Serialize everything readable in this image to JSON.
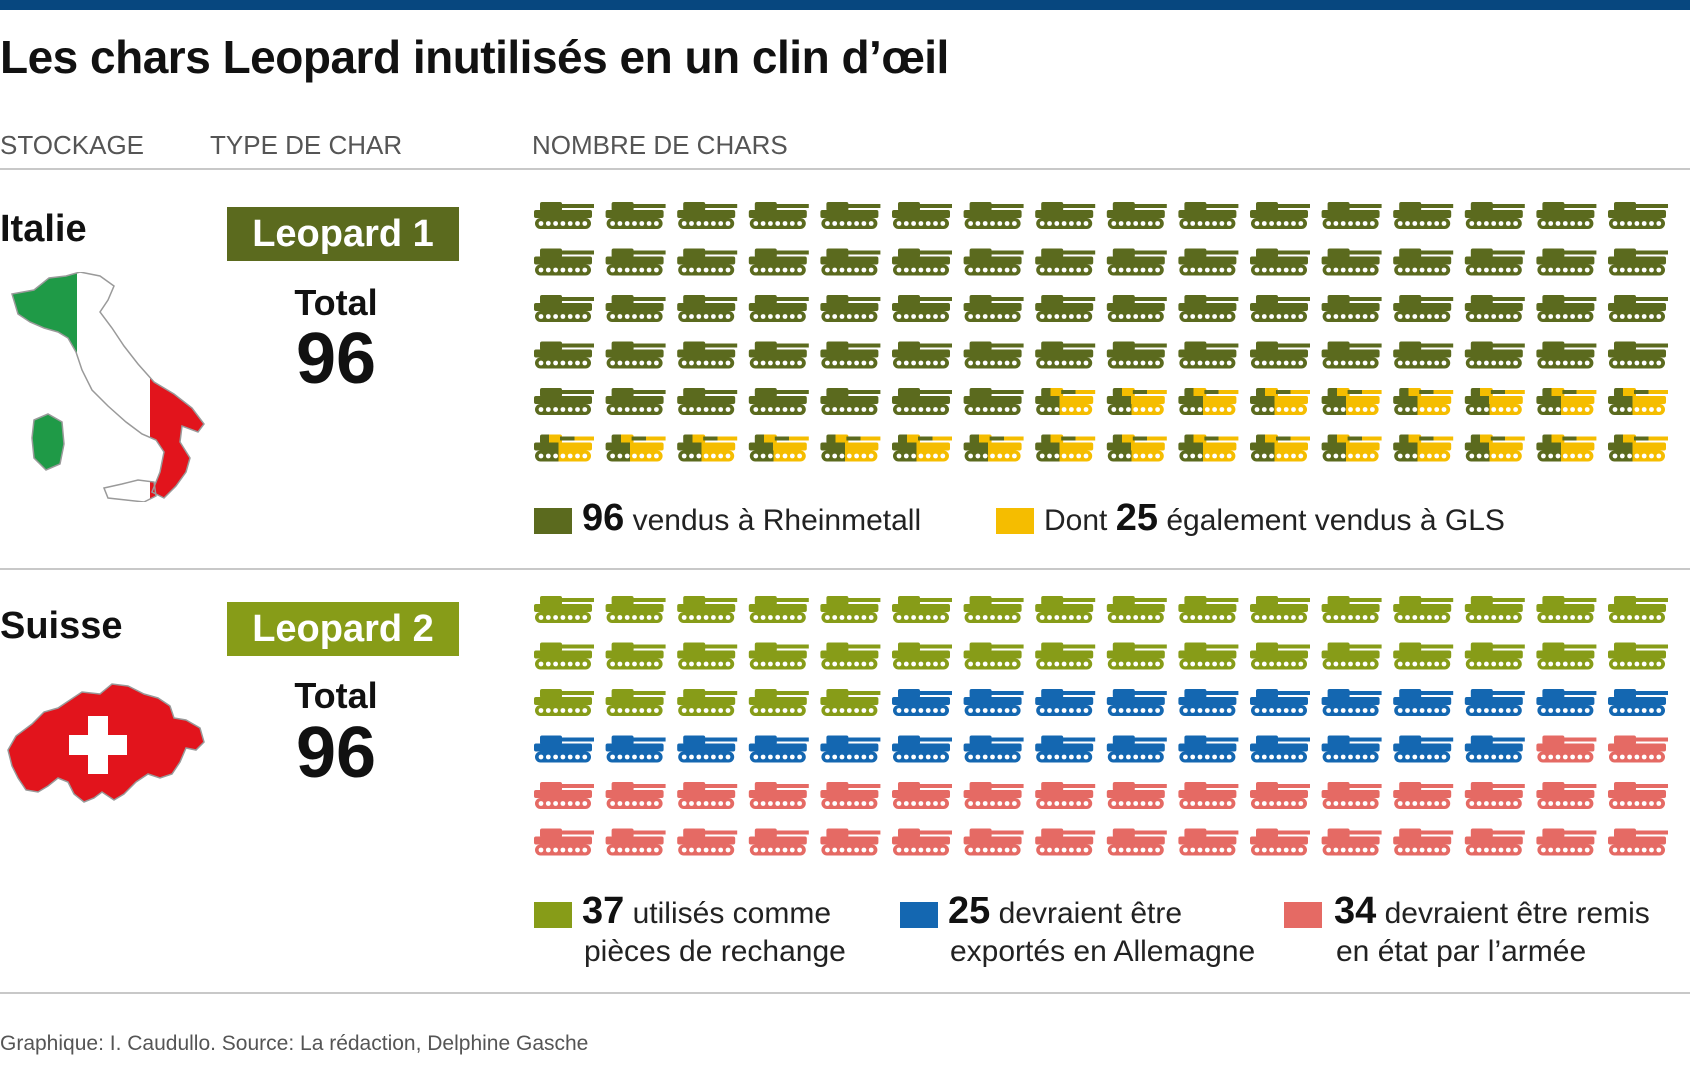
{
  "title": "Les chars Leopard inutilisés en un clin d’œil",
  "columns": {
    "storage": "STOCKAGE",
    "type": "TYPE DE CHAR",
    "count": "NOMBRE DE CHARS"
  },
  "colors": {
    "topbar": "#07477f",
    "leopard1": "#5b6a1e",
    "gls": "#f5bd00",
    "leopard2": "#879c18",
    "export": "#1467b1",
    "repair": "#e56a64"
  },
  "italy": {
    "country": "Italie",
    "tank_type": "Leopard 1",
    "total_label": "Total",
    "total_value": "96",
    "map_icon": "italy-map-icon",
    "legend": [
      {
        "value": "96",
        "label": "vendus à Rheinmetall",
        "color": "#5b6a1e"
      },
      {
        "prefix": "Dont",
        "value": "25",
        "label": "également vendus à GLS",
        "color": "#f5bd00"
      }
    ]
  },
  "switzerland": {
    "country": "Suisse",
    "tank_type": "Leopard 2",
    "total_label": "Total",
    "total_value": "96",
    "map_icon": "switzerland-map-icon",
    "legend": [
      {
        "value": "37",
        "line1": "utilisés comme",
        "line2": "pièces de rechange",
        "color": "#879c18"
      },
      {
        "value": "25",
        "line1": "devraient être",
        "line2": "exportés en Allemagne",
        "color": "#1467b1"
      },
      {
        "value": "34",
        "line1": "devraient être remis",
        "line2": "en état par l’armée",
        "color": "#e56a64"
      }
    ]
  },
  "chart_data": [
    {
      "type": "pictogram",
      "title": "Italie — Leopard 1",
      "total": 96,
      "grid": {
        "rows": 6,
        "cols": 16
      },
      "series": [
        {
          "name": "vendus à Rheinmetall",
          "value": 96
        },
        {
          "name": "Dont également vendus à GLS",
          "value": 25,
          "subset_of": "vendus à Rheinmetall"
        }
      ]
    },
    {
      "type": "pictogram",
      "title": "Suisse — Leopard 2",
      "total": 96,
      "grid": {
        "rows": 6,
        "cols": 16
      },
      "series": [
        {
          "name": "utilisés comme pièces de rechange",
          "value": 37
        },
        {
          "name": "devraient être exportés en Allemagne",
          "value": 25
        },
        {
          "name": "devraient être remis en état par l’armée",
          "value": 34
        }
      ]
    }
  ],
  "source": "Graphique: I. Caudullo. Source: La rédaction, Delphine Gasche"
}
